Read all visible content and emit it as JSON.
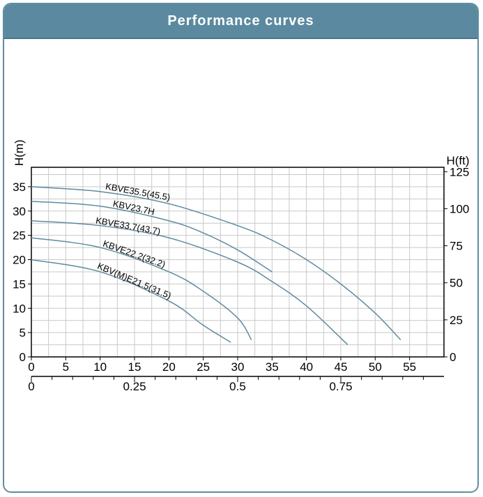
{
  "header": {
    "title": "Performance curves"
  },
  "colors": {
    "header_bg": "#5b8aa0",
    "curve": "#5f8aa0",
    "grid": "#c8c8c8"
  },
  "chart_data": {
    "type": "line",
    "title": "",
    "ylabel_left": "H(m)",
    "ylabel_right": "H(ft)",
    "xlim": [
      0,
      60
    ],
    "ylim": [
      0,
      39
    ],
    "x_ticks": [
      "0",
      "5",
      "10",
      "15",
      "20",
      "25",
      "30",
      "35",
      "40",
      "45",
      "50",
      "55"
    ],
    "y_ticks_left": [
      "0",
      "5",
      "10",
      "15",
      "20",
      "25",
      "30",
      "35"
    ],
    "y_ticks_right": [
      "0",
      "25",
      "50",
      "75",
      "100",
      "125"
    ],
    "secondary_x_ticks": [
      "0",
      "0.25",
      "0.5",
      "0.75"
    ],
    "grid": true,
    "series": [
      {
        "name": "KBVE35.5(45.5)",
        "x": [
          0,
          10,
          20,
          30,
          35,
          40,
          45,
          50,
          53.7
        ],
        "y": [
          35,
          34,
          31.5,
          27,
          24,
          20,
          15,
          9,
          3.5
        ]
      },
      {
        "name": "KBV23.7H",
        "x": [
          0,
          10,
          20,
          25,
          30,
          35
        ],
        "y": [
          32,
          31,
          28,
          25.5,
          22,
          17.5
        ]
      },
      {
        "name": "KBVE33.7(43.7)",
        "x": [
          0,
          10,
          20,
          30,
          35,
          40,
          46
        ],
        "y": [
          28,
          27,
          24.5,
          19.5,
          15.5,
          10.5,
          2.5
        ]
      },
      {
        "name": "KBVE22.2(32.2)",
        "x": [
          0,
          10,
          20,
          25,
          30,
          32
        ],
        "y": [
          24.5,
          22.5,
          17.5,
          13.5,
          8,
          3.5
        ]
      },
      {
        "name": "KBV(M)E21.5(31.5)",
        "x": [
          0,
          10,
          20,
          25,
          29
        ],
        "y": [
          20,
          17.5,
          11.5,
          6.5,
          3
        ]
      }
    ]
  }
}
